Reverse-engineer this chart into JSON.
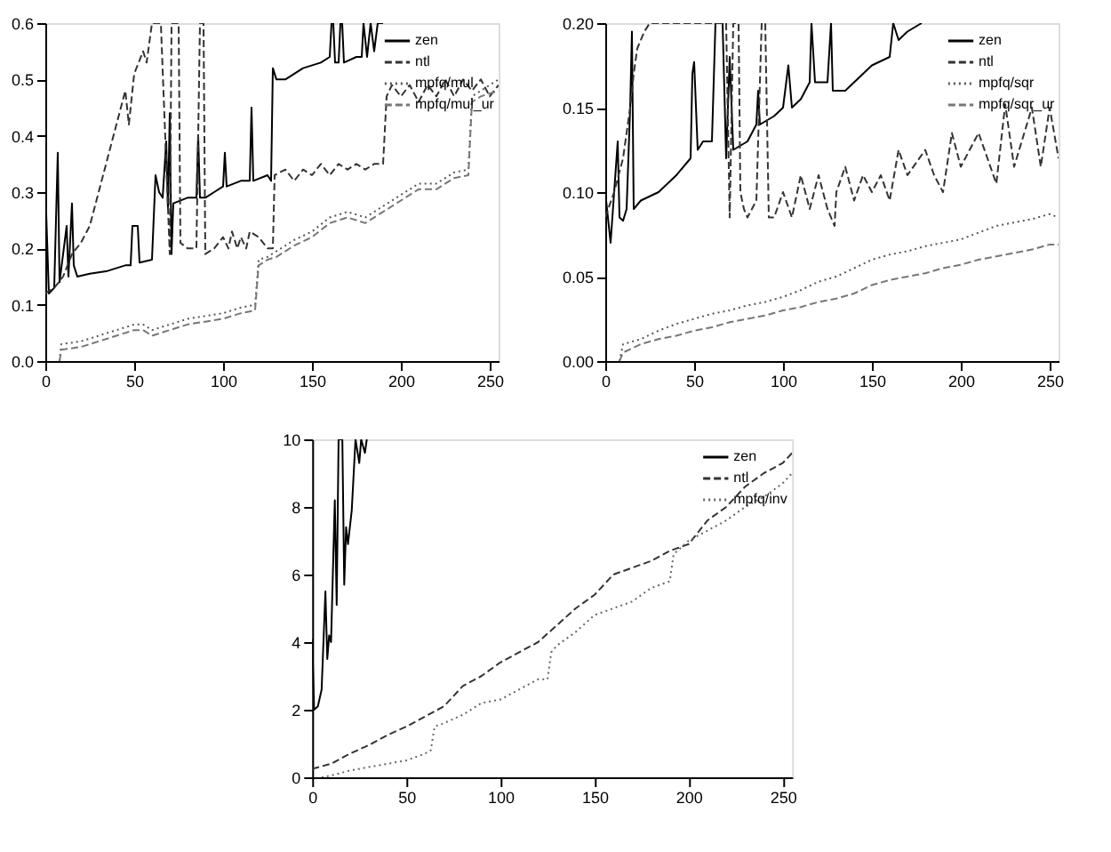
{
  "chart_data": [
    {
      "type": "line",
      "xlim": [
        0,
        255
      ],
      "xticks": [
        0,
        50,
        100,
        150,
        200,
        250
      ],
      "ylim": [
        0,
        0.6
      ],
      "yticks": [
        {
          "value": 0,
          "label": "0.0"
        },
        0.1,
        0.2,
        0.3,
        0.4,
        0.5,
        0.6
      ],
      "grid": false,
      "legend": "top right",
      "marker": "none",
      "series": [
        {
          "name": "zen",
          "color": "#000000",
          "line_style": "solid",
          "x": [
            0,
            2,
            5,
            7,
            8,
            12,
            13,
            15,
            16,
            18,
            25,
            35,
            45,
            48,
            49,
            52,
            53,
            60,
            62,
            64,
            66,
            68,
            69,
            70,
            71,
            72,
            80,
            85,
            86,
            87,
            90,
            95,
            100,
            101,
            102,
            110,
            115,
            116,
            117,
            125,
            127,
            128,
            130,
            135,
            145,
            155,
            160,
            161,
            162,
            163,
            165,
            166,
            167,
            168,
            175,
            178,
            179,
            181,
            183,
            185,
            187,
            190
          ],
          "values": [
            0.31,
            0.12,
            0.13,
            0.37,
            0.14,
            0.24,
            0.15,
            0.28,
            0.17,
            0.15,
            0.155,
            0.16,
            0.17,
            0.17,
            0.24,
            0.24,
            0.175,
            0.18,
            0.33,
            0.3,
            0.29,
            0.39,
            0.27,
            0.44,
            0.19,
            0.28,
            0.29,
            0.29,
            0.4,
            0.29,
            0.29,
            0.3,
            0.31,
            0.37,
            0.31,
            0.32,
            0.32,
            0.45,
            0.32,
            0.33,
            0.32,
            0.52,
            0.5,
            0.5,
            0.52,
            0.53,
            0.54,
            0.6,
            0.6,
            0.53,
            0.53,
            0.6,
            0.6,
            0.53,
            0.54,
            0.54,
            0.6,
            0.54,
            0.6,
            0.55,
            0.6,
            0.6
          ]
        },
        {
          "name": "ntl",
          "color": "#333333",
          "line_style": "dashed",
          "x": [
            0,
            5,
            10,
            15,
            20,
            25,
            30,
            35,
            40,
            45,
            47,
            50,
            55,
            57,
            60,
            65,
            70,
            71,
            75,
            76,
            80,
            85,
            87,
            89,
            90,
            95,
            100,
            103,
            105,
            108,
            110,
            113,
            115,
            120,
            125,
            128,
            129,
            135,
            140,
            145,
            150,
            155,
            160,
            165,
            170,
            175,
            180,
            185,
            190,
            192,
            195,
            200,
            205,
            210,
            215,
            220,
            225,
            230,
            235,
            240,
            245,
            250,
            255
          ],
          "values": [
            0.12,
            0.13,
            0.15,
            0.19,
            0.21,
            0.24,
            0.3,
            0.36,
            0.42,
            0.48,
            0.42,
            0.51,
            0.55,
            0.53,
            0.6,
            0.6,
            0.19,
            0.6,
            0.6,
            0.21,
            0.2,
            0.2,
            0.6,
            0.6,
            0.19,
            0.2,
            0.22,
            0.2,
            0.23,
            0.2,
            0.22,
            0.2,
            0.23,
            0.22,
            0.2,
            0.2,
            0.33,
            0.34,
            0.32,
            0.34,
            0.33,
            0.35,
            0.33,
            0.35,
            0.34,
            0.35,
            0.34,
            0.35,
            0.35,
            0.47,
            0.49,
            0.47,
            0.49,
            0.46,
            0.49,
            0.47,
            0.5,
            0.47,
            0.5,
            0.48,
            0.5,
            0.47,
            0.49
          ]
        },
        {
          "name": "mpfq/mul",
          "color": "#555555",
          "line_style": "dotted",
          "x": [
            8,
            9,
            20,
            30,
            40,
            50,
            55,
            60,
            70,
            80,
            90,
            100,
            110,
            118,
            120,
            125,
            130,
            140,
            150,
            160,
            170,
            180,
            190,
            200,
            210,
            220,
            230,
            238,
            240,
            245,
            255
          ],
          "values": [
            0,
            0.03,
            0.035,
            0.045,
            0.055,
            0.065,
            0.065,
            0.055,
            0.065,
            0.075,
            0.08,
            0.085,
            0.095,
            0.1,
            0.18,
            0.185,
            0.195,
            0.215,
            0.23,
            0.255,
            0.265,
            0.255,
            0.275,
            0.295,
            0.315,
            0.315,
            0.335,
            0.34,
            0.47,
            0.48,
            0.5
          ]
        },
        {
          "name": "mpfq/mul_ur",
          "color": "#777777",
          "line_style": "dashed",
          "x": [
            8,
            9,
            20,
            30,
            40,
            50,
            55,
            60,
            70,
            80,
            90,
            100,
            110,
            118,
            120,
            125,
            130,
            140,
            150,
            160,
            170,
            180,
            190,
            200,
            210,
            220,
            230,
            238,
            240,
            245,
            255
          ],
          "values": [
            0,
            0.02,
            0.025,
            0.035,
            0.045,
            0.055,
            0.055,
            0.045,
            0.055,
            0.065,
            0.07,
            0.075,
            0.085,
            0.09,
            0.17,
            0.18,
            0.185,
            0.205,
            0.22,
            0.245,
            0.255,
            0.245,
            0.265,
            0.285,
            0.305,
            0.305,
            0.325,
            0.33,
            0.46,
            0.47,
            0.48
          ]
        }
      ]
    },
    {
      "type": "line",
      "xlim": [
        0,
        255
      ],
      "xticks": [
        0,
        50,
        100,
        150,
        200,
        250
      ],
      "ylim": [
        0,
        0.2
      ],
      "yticks": [
        {
          "value": 0,
          "label": "0.00"
        },
        0.05,
        {
          "value": 0.1,
          "label": "0.10"
        },
        0.15,
        {
          "value": 0.2,
          "label": "0.20"
        }
      ],
      "grid": false,
      "legend": "top right",
      "marker": "none",
      "series": [
        {
          "name": "zen",
          "color": "#000000",
          "line_style": "solid",
          "x": [
            0,
            2,
            3,
            5,
            7,
            8,
            10,
            12,
            14,
            15,
            16,
            20,
            30,
            40,
            48,
            49,
            50,
            52,
            55,
            60,
            62,
            64,
            66,
            68,
            70,
            72,
            80,
            85,
            86,
            87,
            95,
            100,
            103,
            105,
            110,
            115,
            116,
            118,
            125,
            127,
            128,
            135,
            140,
            150,
            160,
            162,
            165,
            170,
            178
          ],
          "values": [
            0.1,
            0.08,
            0.07,
            0.1,
            0.13,
            0.085,
            0.083,
            0.09,
            0.15,
            0.195,
            0.09,
            0.095,
            0.1,
            0.11,
            0.12,
            0.17,
            0.177,
            0.125,
            0.13,
            0.13,
            0.2,
            0.2,
            0.2,
            0.12,
            0.18,
            0.125,
            0.13,
            0.14,
            0.16,
            0.14,
            0.145,
            0.15,
            0.175,
            0.15,
            0.155,
            0.165,
            0.2,
            0.165,
            0.165,
            0.2,
            0.16,
            0.16,
            0.165,
            0.175,
            0.18,
            0.2,
            0.19,
            0.195,
            0.2
          ]
        },
        {
          "name": "ntl",
          "color": "#333333",
          "line_style": "dashed",
          "x": [
            0,
            5,
            10,
            14,
            16,
            18,
            22,
            25,
            68,
            70,
            72,
            75,
            76,
            78,
            80,
            85,
            88,
            90,
            92,
            95,
            100,
            105,
            110,
            115,
            120,
            125,
            129,
            130,
            135,
            140,
            145,
            150,
            155,
            160,
            165,
            170,
            180,
            185,
            190,
            195,
            200,
            210,
            215,
            220,
            225,
            230,
            240,
            245,
            250,
            255
          ],
          "values": [
            0.085,
            0.1,
            0.12,
            0.15,
            0.17,
            0.185,
            0.195,
            0.2,
            0.2,
            0.085,
            0.2,
            0.2,
            0.1,
            0.09,
            0.085,
            0.095,
            0.2,
            0.2,
            0.085,
            0.085,
            0.1,
            0.085,
            0.11,
            0.09,
            0.11,
            0.09,
            0.08,
            0.1,
            0.115,
            0.095,
            0.11,
            0.1,
            0.11,
            0.095,
            0.125,
            0.11,
            0.125,
            0.11,
            0.1,
            0.135,
            0.115,
            0.135,
            0.12,
            0.105,
            0.152,
            0.115,
            0.15,
            0.115,
            0.15,
            0.12
          ]
        },
        {
          "name": "mpfq/sqr",
          "color": "#555555",
          "line_style": "dotted",
          "x": [
            8,
            10,
            20,
            30,
            40,
            50,
            60,
            70,
            80,
            90,
            100,
            110,
            120,
            130,
            140,
            150,
            160,
            170,
            180,
            190,
            200,
            210,
            220,
            230,
            240,
            250,
            255
          ],
          "values": [
            0,
            0.01,
            0.013,
            0.018,
            0.022,
            0.025,
            0.028,
            0.03,
            0.033,
            0.035,
            0.038,
            0.042,
            0.047,
            0.05,
            0.055,
            0.06,
            0.063,
            0.065,
            0.068,
            0.07,
            0.072,
            0.076,
            0.08,
            0.082,
            0.084,
            0.087,
            0.085
          ]
        },
        {
          "name": "mpfq/sqr_ur",
          "color": "#777777",
          "line_style": "dashed",
          "x": [
            8,
            10,
            20,
            30,
            40,
            50,
            60,
            70,
            80,
            90,
            100,
            110,
            120,
            130,
            140,
            150,
            160,
            170,
            180,
            190,
            200,
            210,
            220,
            230,
            240,
            250,
            255
          ],
          "values": [
            0,
            0.005,
            0.01,
            0.013,
            0.015,
            0.018,
            0.02,
            0.023,
            0.025,
            0.027,
            0.03,
            0.032,
            0.035,
            0.037,
            0.04,
            0.045,
            0.048,
            0.05,
            0.052,
            0.055,
            0.057,
            0.06,
            0.062,
            0.064,
            0.066,
            0.069,
            0.069
          ]
        }
      ]
    },
    {
      "type": "line",
      "xlim": [
        0,
        255
      ],
      "xticks": [
        0,
        50,
        100,
        150,
        200,
        250
      ],
      "ylim": [
        0,
        10
      ],
      "yticks": [
        0,
        2,
        4,
        6,
        8,
        10
      ],
      "grid": false,
      "legend": "top right",
      "marker": "none",
      "series": [
        {
          "name": "zen",
          "color": "#000000",
          "line_style": "solid",
          "x": [
            0,
            1,
            3,
            5,
            7,
            8,
            9,
            10,
            12,
            13,
            14,
            16,
            17,
            18,
            19,
            21,
            23,
            25,
            26,
            28,
            29
          ],
          "values": [
            4.1,
            2.0,
            2.1,
            2.6,
            5.5,
            3.5,
            4.2,
            4.0,
            8.2,
            5.1,
            10,
            10,
            5.7,
            7.4,
            6.9,
            7.9,
            10,
            9.3,
            10,
            9.6,
            10
          ]
        },
        {
          "name": "ntl",
          "color": "#333333",
          "line_style": "dashed",
          "x": [
            0,
            10,
            20,
            30,
            40,
            50,
            60,
            70,
            80,
            90,
            100,
            110,
            120,
            130,
            140,
            150,
            160,
            170,
            180,
            190,
            200,
            210,
            220,
            230,
            240,
            250,
            255
          ],
          "values": [
            0.25,
            0.4,
            0.7,
            0.95,
            1.25,
            1.5,
            1.8,
            2.1,
            2.7,
            3.0,
            3.4,
            3.7,
            4.0,
            4.5,
            5.0,
            5.4,
            6.0,
            6.2,
            6.4,
            6.7,
            6.9,
            7.6,
            8.0,
            8.6,
            9.0,
            9.3,
            9.6
          ]
        },
        {
          "name": "mpfq/inv",
          "color": "#666666",
          "line_style": "dotted",
          "x": [
            5,
            10,
            20,
            30,
            40,
            50,
            60,
            63,
            65,
            70,
            80,
            90,
            100,
            110,
            120,
            125,
            127,
            130,
            140,
            150,
            160,
            170,
            180,
            190,
            192,
            200,
            210,
            220,
            230,
            240,
            250,
            255
          ],
          "values": [
            0,
            0.05,
            0.2,
            0.3,
            0.4,
            0.5,
            0.7,
            0.8,
            1.5,
            1.6,
            1.85,
            2.2,
            2.3,
            2.6,
            2.9,
            2.9,
            3.7,
            3.9,
            4.3,
            4.8,
            5.0,
            5.2,
            5.6,
            5.8,
            6.6,
            7.0,
            7.3,
            7.6,
            8.0,
            8.3,
            8.7,
            9.0
          ]
        }
      ]
    }
  ]
}
